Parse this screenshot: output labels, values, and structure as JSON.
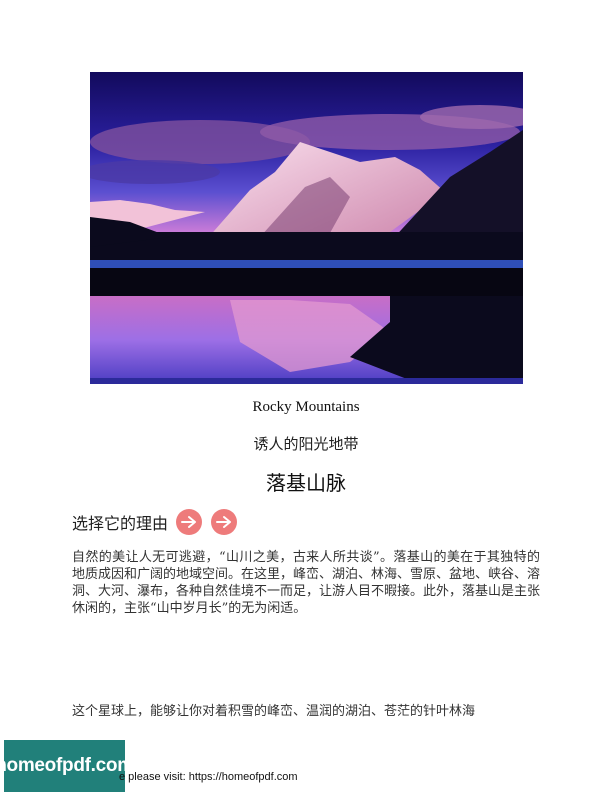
{
  "hero": {
    "alt": "Rocky Mountains lake at sunset"
  },
  "captions": {
    "english": "Rocky Mountains",
    "chinese": "诱人的阳光地带",
    "title": "落基山脉"
  },
  "reasons": {
    "label": "选择它的理由"
  },
  "paragraphs": {
    "p1": "自然的美让人无可逃避，“山川之美，古来人所共谈”。落基山的美在于其独特的地质成因和广阔的地域空间。在这里，峰峦、湖泊、林海、雪原、盆地、峡谷、溶洞、大河、瀑布，各种自然佳境不一而足，让游人目不暇接。此外，落基山是主张休闲的，主张“山中岁月长”的无为闲适。",
    "p2": "这个星球上，能够让你对着积雪的峰峦、温润的湖泊、苍茫的针叶林海"
  },
  "footer": {
    "logo_text": "homeofpdf.com",
    "link_text": "e please visit: https://homeofpdf.com"
  },
  "colors": {
    "arrow": "#ee7b7b",
    "logo_bg": "#21807a"
  }
}
